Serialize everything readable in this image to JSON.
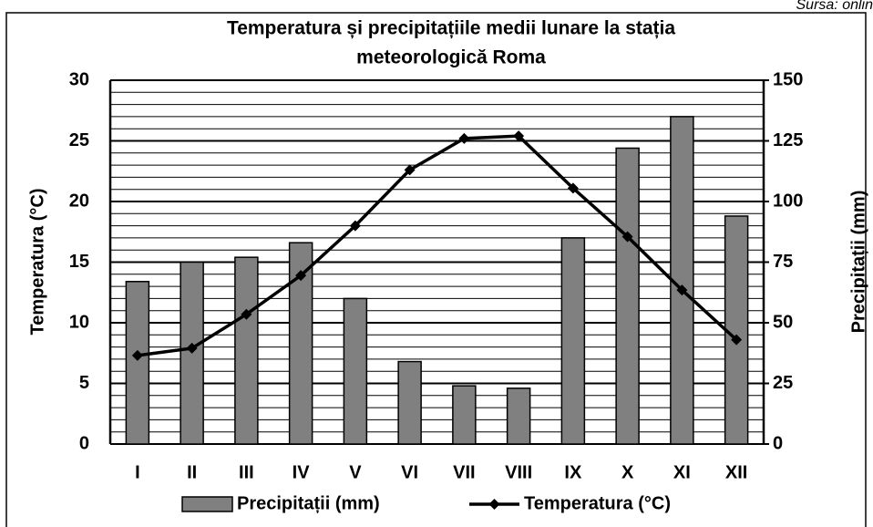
{
  "chart_data": {
    "type": "bar",
    "source": "Sursa: onlin",
    "title": [
      "Temperatura și precipitațiile medii lunare la stația",
      "meteorologică Roma"
    ],
    "y_label": "Temperatura (°C)",
    "y2_label": "Precipitații (mm)",
    "categories": [
      "I",
      "II",
      "III",
      "IV",
      "V",
      "VI",
      "VII",
      "VIII",
      "IX",
      "X",
      "XI",
      "XII"
    ],
    "series": [
      {
        "name": "Precipitații (mm)",
        "type": "bar",
        "axis": "y2",
        "color": "#808080",
        "values": [
          67,
          75,
          77,
          83,
          60,
          34,
          24,
          23,
          85,
          122,
          135,
          94
        ]
      },
      {
        "name": "Temperatura (°C)",
        "type": "line",
        "color": "#000000",
        "values": [
          7.3,
          7.9,
          10.7,
          13.9,
          18.0,
          22.6,
          25.2,
          25.4,
          21.1,
          17.1,
          12.7,
          8.6
        ]
      }
    ],
    "ylim": [
      0,
      30
    ],
    "yticks": [
      0,
      5,
      10,
      15,
      20,
      25,
      30
    ],
    "y2lim": [
      0,
      150
    ],
    "y2ticks": [
      0,
      25,
      50,
      75,
      100,
      125,
      150
    ],
    "grid": true
  }
}
